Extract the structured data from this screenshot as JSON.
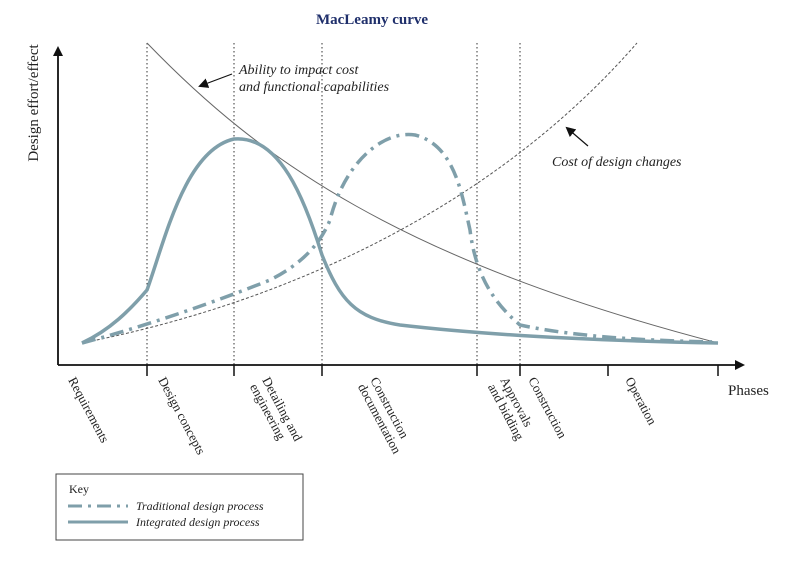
{
  "title": "MacLeamy curve",
  "y_axis_label": "Design effort/effect",
  "x_axis_label": "Phases",
  "annotations": {
    "ability_line1": "Ability to impact cost",
    "ability_line2": "and functional capabilities",
    "cost_changes": "Cost of design changes"
  },
  "phases": [
    {
      "lines": [
        "Requirements"
      ]
    },
    {
      "lines": [
        "Design concepts"
      ]
    },
    {
      "lines": [
        "Detailing and",
        "engineering"
      ]
    },
    {
      "lines": [
        "Construction",
        "documentation"
      ]
    },
    {
      "lines": [
        "Approvals",
        "and bidding"
      ]
    },
    {
      "lines": [
        "Construction"
      ]
    },
    {
      "lines": [
        "Operation"
      ]
    }
  ],
  "key": {
    "title": "Key",
    "traditional": "Traditional design process",
    "integrated": "Integrated design process"
  },
  "colors": {
    "process_curve": "#7f9faa",
    "thin_line": "#555555",
    "axis": "#111111",
    "title": "#1f2f6b"
  }
}
